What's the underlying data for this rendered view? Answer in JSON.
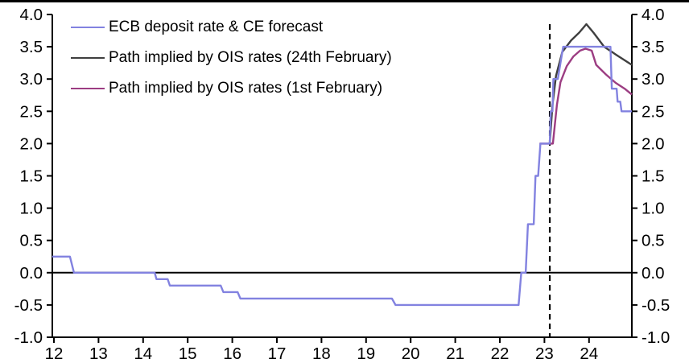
{
  "chart_data": {
    "type": "line",
    "title": "",
    "background": "#ffffff",
    "axis_color": "#000000",
    "grid": false,
    "legend_position": "top-left",
    "y_axis": {
      "sides": "both",
      "min": -1.0,
      "max": 4.0,
      "tick_values": [
        4.0,
        3.5,
        3.0,
        2.5,
        2.0,
        1.5,
        1.0,
        0.5,
        0.0,
        -0.5,
        -1.0
      ],
      "tick_labels": [
        "4.0",
        "3.5",
        "3.0",
        "2.5",
        "2.0",
        "1.5",
        "1.0",
        "0.5",
        "0.0",
        "-0.5",
        "-1.0"
      ]
    },
    "x_axis": {
      "min": 11.96,
      "max": 24.96,
      "tick_values": [
        12,
        13,
        14,
        15,
        16,
        17,
        18,
        19,
        20,
        21,
        22,
        23,
        24
      ],
      "tick_labels": [
        "12",
        "13",
        "14",
        "15",
        "16",
        "17",
        "18",
        "19",
        "20",
        "21",
        "22",
        "23",
        "24"
      ]
    },
    "zero_line": {
      "value": 0.0,
      "color": "#000000"
    },
    "forecast_divider": {
      "x": 23.12,
      "y_top": 3.85,
      "y_bottom": -1.0,
      "style": "dashed",
      "color": "#000000"
    },
    "series": [
      {
        "name": "ECB deposit rate & CE forecast",
        "color": "#8282E0",
        "points": [
          [
            11.96,
            0.25
          ],
          [
            12.36,
            0.25
          ],
          [
            12.45,
            0.0
          ],
          [
            14.26,
            0.0
          ],
          [
            14.3,
            -0.1
          ],
          [
            14.55,
            -0.1
          ],
          [
            14.6,
            -0.2
          ],
          [
            15.74,
            -0.2
          ],
          [
            15.8,
            -0.3
          ],
          [
            16.12,
            -0.3
          ],
          [
            16.18,
            -0.4
          ],
          [
            19.58,
            -0.4
          ],
          [
            19.66,
            -0.5
          ],
          [
            22.42,
            -0.5
          ],
          [
            22.48,
            0.0
          ],
          [
            22.58,
            0.0
          ],
          [
            22.63,
            0.75
          ],
          [
            22.76,
            0.75
          ],
          [
            22.8,
            1.5
          ],
          [
            22.86,
            1.5
          ],
          [
            22.91,
            2.0
          ],
          [
            23.12,
            2.0
          ],
          [
            23.14,
            2.5
          ],
          [
            23.18,
            2.5
          ],
          [
            23.2,
            3.0
          ],
          [
            23.3,
            3.0
          ],
          [
            23.42,
            3.5
          ],
          [
            24.48,
            3.5
          ],
          [
            24.51,
            2.85
          ],
          [
            24.62,
            2.85
          ],
          [
            24.64,
            2.65
          ],
          [
            24.7,
            2.65
          ],
          [
            24.73,
            2.5
          ],
          [
            24.96,
            2.5
          ]
        ]
      },
      {
        "name": "Path implied by OIS rates (24th February)",
        "color": "#3F3F3F",
        "points": [
          [
            23.12,
            2.0
          ],
          [
            23.18,
            2.6
          ],
          [
            23.26,
            3.05
          ],
          [
            23.4,
            3.42
          ],
          [
            23.6,
            3.6
          ],
          [
            23.78,
            3.72
          ],
          [
            23.94,
            3.85
          ],
          [
            24.1,
            3.72
          ],
          [
            24.34,
            3.5
          ],
          [
            24.6,
            3.38
          ],
          [
            24.96,
            3.22
          ]
        ]
      },
      {
        "name": "Path implied by OIS rates (1st February)",
        "color": "#9C3D82",
        "points": [
          [
            22.89,
            2.0
          ],
          [
            23.19,
            2.0
          ],
          [
            23.28,
            2.6
          ],
          [
            23.36,
            2.95
          ],
          [
            23.5,
            3.2
          ],
          [
            23.65,
            3.35
          ],
          [
            23.8,
            3.44
          ],
          [
            23.92,
            3.47
          ],
          [
            24.06,
            3.44
          ],
          [
            24.16,
            3.22
          ],
          [
            24.38,
            3.07
          ],
          [
            24.6,
            2.94
          ],
          [
            24.8,
            2.85
          ],
          [
            24.96,
            2.76
          ]
        ]
      }
    ]
  }
}
